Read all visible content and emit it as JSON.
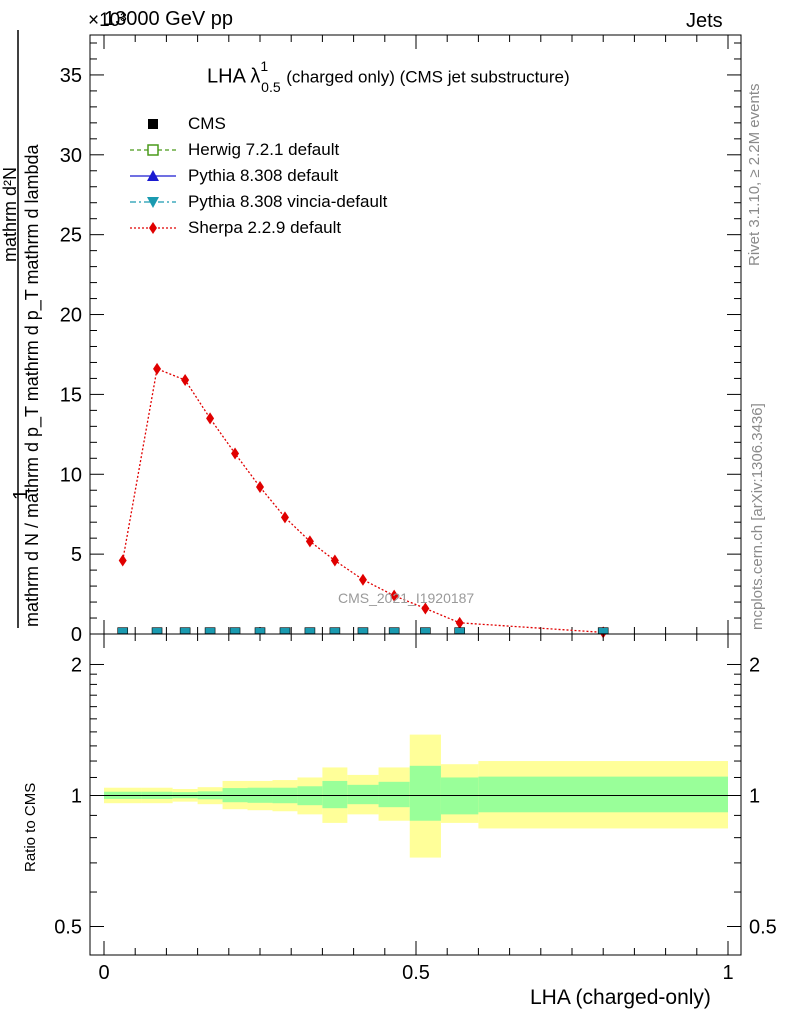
{
  "header": {
    "energy": "13000 GeV pp",
    "process": "Jets",
    "exponent": "×10³",
    "analysis_tag": "CMS_2021_I1920187",
    "rivet_label": "Rivet 3.1.10, ≥ 2.2M events",
    "mcplots_label": "mcplots.cern.ch [arXiv:1306.3436]"
  },
  "chart_data": [
    {
      "type": "line",
      "title": {
        "main": "LHA λ",
        "sup": "1",
        "sub": "0.5",
        "tail": "(charged only) (CMS jet substructure)"
      },
      "ylabel": {
        "numerator_line1": "1",
        "denominator_line1": "mathrm d N / mathrm d p_T mathrm d p_T mathrm d lambda",
        "numerator_line2": "mathrm d²N"
      },
      "xlim": [
        0,
        1
      ],
      "ylim": [
        0,
        37.5
      ],
      "y_ticks": [
        0,
        5,
        10,
        15,
        20,
        25,
        30,
        35
      ],
      "y_tick_labels": [
        "0",
        "5",
        "10",
        "15",
        "20",
        "25",
        "30",
        "35"
      ],
      "legend_position": "top-left",
      "legend": [
        {
          "name": "CMS",
          "color": "#000000",
          "marker": "square-filled",
          "line": "none"
        },
        {
          "name": "Herwig 7.2.1 default",
          "color": "#4a9a1a",
          "marker": "square-open",
          "line": "dashed"
        },
        {
          "name": "Pythia 8.308 default",
          "color": "#1a1ad0",
          "marker": "triangle-up",
          "line": "solid"
        },
        {
          "name": "Pythia 8.308 vincia-default",
          "color": "#1a9ab0",
          "marker": "triangle-down",
          "line": "dashdot"
        },
        {
          "name": "Sherpa 2.2.9 default",
          "color": "#e00000",
          "marker": "diamond",
          "line": "dotted"
        }
      ],
      "series": [
        {
          "name": "Sherpa 2.2.9 default",
          "x": [
            0.03,
            0.085,
            0.13,
            0.17,
            0.21,
            0.25,
            0.29,
            0.33,
            0.37,
            0.415,
            0.465,
            0.515,
            0.57,
            0.8
          ],
          "values": [
            4.6,
            16.6,
            15.9,
            13.5,
            11.3,
            9.2,
            7.3,
            5.8,
            4.6,
            3.4,
            2.4,
            1.6,
            0.7,
            0.1
          ]
        },
        {
          "name": "CMS",
          "x": [
            0.03,
            0.085,
            0.13,
            0.17,
            0.21,
            0.25,
            0.29,
            0.33,
            0.37,
            0.415,
            0.465,
            0.515,
            0.57,
            0.8
          ],
          "values": [
            0.02,
            0.02,
            0.02,
            0.02,
            0.02,
            0.02,
            0.02,
            0.02,
            0.02,
            0.02,
            0.02,
            0.02,
            0.02,
            0.02
          ]
        }
      ]
    },
    {
      "type": "area",
      "ylabel": "Ratio to CMS",
      "xlabel": "LHA (charged-only)",
      "xlim": [
        0,
        1
      ],
      "ylim": [
        0.43,
        2.35
      ],
      "log_scale_y": true,
      "y_ticks": [
        0.5,
        1,
        2
      ],
      "y_tick_labels": [
        "0.5",
        "1",
        "2"
      ],
      "x_ticks": [
        0,
        0.5,
        1
      ],
      "x_tick_labels": [
        "0",
        "0.5",
        "1"
      ],
      "reference_line": 1,
      "bin_edges": [
        0,
        0.06,
        0.11,
        0.15,
        0.19,
        0.23,
        0.27,
        0.31,
        0.35,
        0.39,
        0.44,
        0.49,
        0.54,
        0.6,
        1.0
      ],
      "inner_band": {
        "color": "#99ff99",
        "lower": [
          0.982,
          0.982,
          0.985,
          0.98,
          0.965,
          0.962,
          0.96,
          0.95,
          0.935,
          0.955,
          0.94,
          0.875,
          0.905,
          0.915
        ],
        "upper": [
          1.02,
          1.02,
          1.018,
          1.022,
          1.04,
          1.042,
          1.042,
          1.05,
          1.08,
          1.058,
          1.075,
          1.17,
          1.1,
          1.105
        ]
      },
      "outer_band": {
        "color": "#ffff99",
        "lower": [
          0.96,
          0.96,
          0.968,
          0.955,
          0.93,
          0.925,
          0.92,
          0.905,
          0.865,
          0.905,
          0.875,
          0.72,
          0.865,
          0.84
        ],
        "upper": [
          1.042,
          1.042,
          1.035,
          1.045,
          1.08,
          1.08,
          1.085,
          1.1,
          1.16,
          1.115,
          1.16,
          1.38,
          1.18,
          1.2
        ]
      }
    }
  ]
}
